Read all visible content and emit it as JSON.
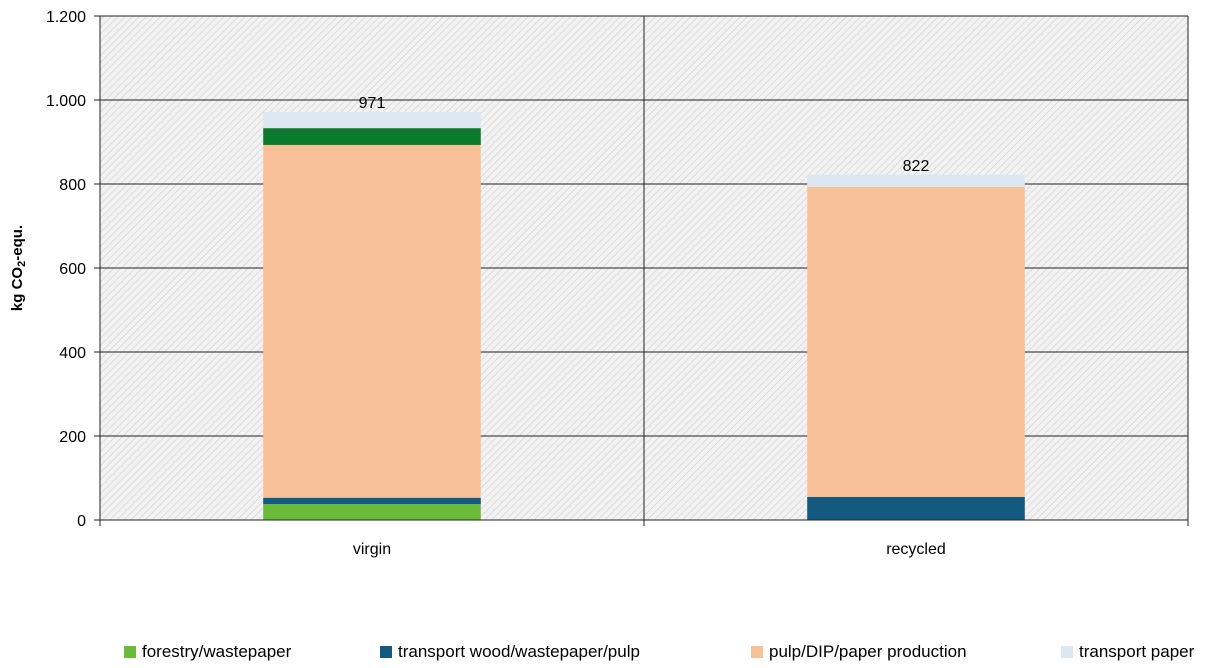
{
  "chart_data": {
    "type": "bar",
    "stacked": true,
    "title": "",
    "xlabel": "",
    "ylabel_main": "kg CO",
    "ylabel_sub": "2",
    "ylabel_tail": "-equ.",
    "ylim": [
      0,
      1200
    ],
    "yticks": [
      0,
      200,
      400,
      600,
      800,
      1000,
      1200
    ],
    "ytick_labels": [
      "0",
      "200",
      "400",
      "600",
      "800",
      "1.000",
      "1.200"
    ],
    "grid": true,
    "legend_position": "bottom",
    "categories": [
      "virgin",
      "recycled"
    ],
    "totals": [
      971,
      822
    ],
    "total_labels": [
      "971",
      "822"
    ],
    "series": [
      {
        "name": "forestry/wastepaper",
        "color": "#6abb3a",
        "values": [
          38,
          0
        ],
        "in_legend": true
      },
      {
        "name": "transport wood/wastepaper/pulp",
        "color": "#145a80",
        "values": [
          15,
          55
        ],
        "in_legend": true
      },
      {
        "name": "pulp/DIP/paper production",
        "color": "#f8c096",
        "values": [
          840,
          738
        ],
        "in_legend": true
      },
      {
        "name": "",
        "color": "#0c7a2c",
        "values": [
          40,
          0
        ],
        "in_legend": false
      },
      {
        "name": "transport paper",
        "color": "#dce7f1",
        "values": [
          38,
          29
        ],
        "in_legend": true
      }
    ]
  }
}
